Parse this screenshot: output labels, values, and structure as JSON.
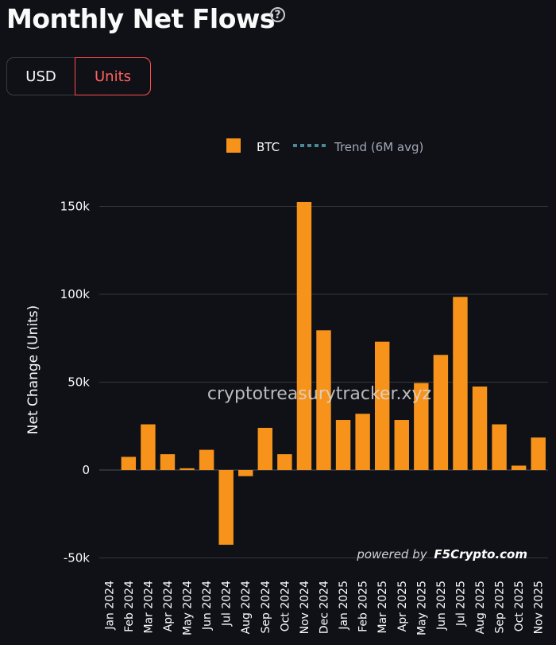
{
  "header": {
    "title": "Monthly Net Flows",
    "help_icon": "question-circle-icon",
    "help_glyph": "?"
  },
  "toggle": {
    "options": [
      "USD",
      "Units"
    ],
    "selected": "Units",
    "selected_color": "#ff4b4b"
  },
  "watermark": "cryptotreasurytracker.xyz",
  "credit": {
    "prefix": "powered by",
    "brand": "F5Crypto.com"
  },
  "chart_data": {
    "type": "bar",
    "ylabel": "Net Change (Units)",
    "ylim": [
      -50000,
      150000
    ],
    "yticks": [
      -50000,
      0,
      50000,
      100000,
      150000
    ],
    "ytick_labels": [
      "-50k",
      "0",
      "50k",
      "100k",
      "150k"
    ],
    "grid": true,
    "legend_position": "top-center",
    "categories": [
      "Jan 2024",
      "Feb 2024",
      "Mar 2024",
      "Apr 2024",
      "May 2024",
      "Jun 2024",
      "Jul 2024",
      "Aug 2024",
      "Sep 2024",
      "Oct 2024",
      "Nov 2024",
      "Dec 2024",
      "Jan 2025",
      "Feb 2025",
      "Mar 2025",
      "Apr 2025",
      "May 2025",
      "Jun 2025",
      "Jul 2025",
      "Aug 2025",
      "Sep 2025",
      "Oct 2025",
      "Nov 2025"
    ],
    "series": [
      {
        "name": "BTC",
        "color": "#f7931a",
        "values": [
          0,
          7500,
          26000,
          9000,
          1000,
          11500,
          -42500,
          -3500,
          24000,
          9000,
          152500,
          79500,
          28500,
          32000,
          73000,
          28500,
          49500,
          65500,
          98500,
          47500,
          26000,
          2500,
          18500
        ]
      }
    ],
    "trend": {
      "name": "Trend (6M avg)",
      "color": "#4a8a96",
      "style": "dotted"
    }
  }
}
